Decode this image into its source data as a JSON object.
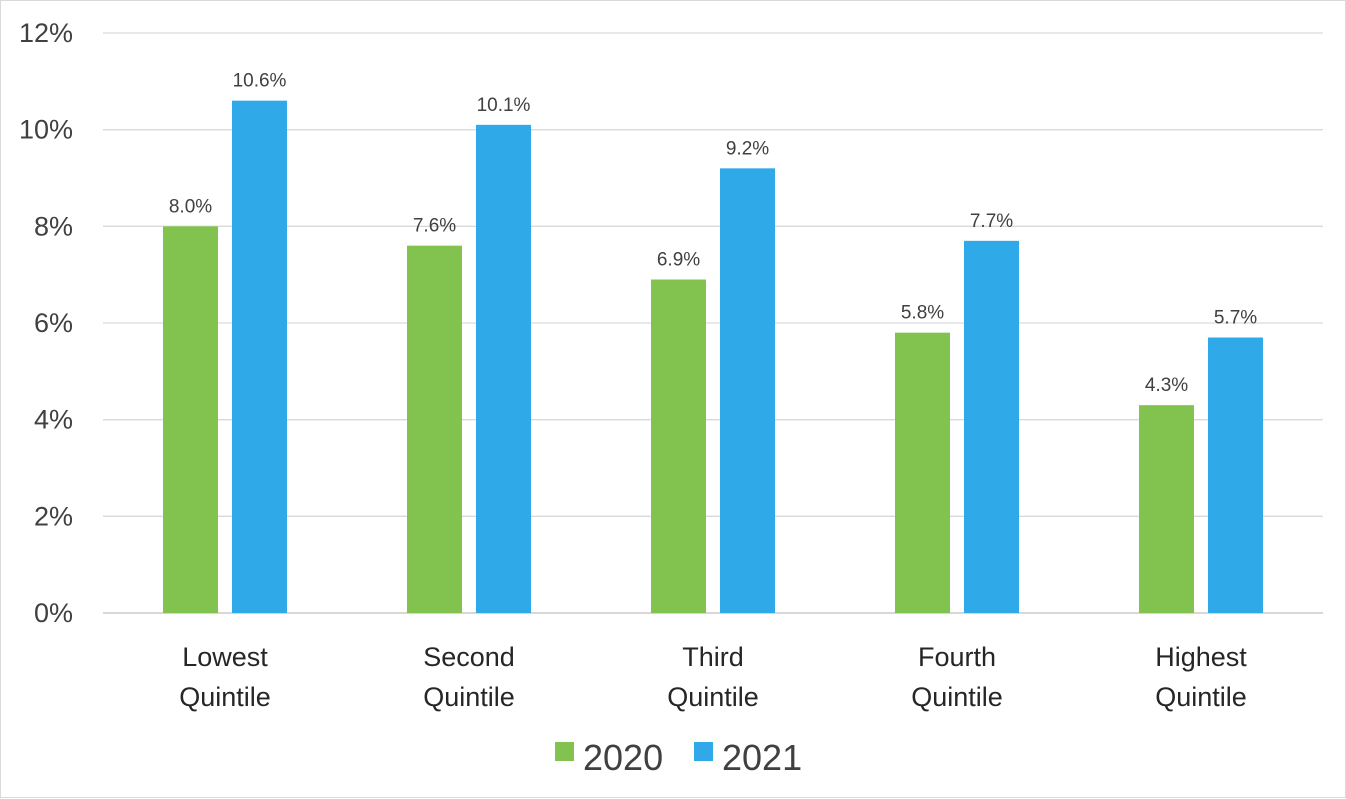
{
  "chart_data": {
    "type": "bar",
    "title": "",
    "xlabel": "",
    "ylabel": "",
    "categories": [
      [
        "Lowest",
        "Quintile"
      ],
      [
        "Second",
        "Quintile"
      ],
      [
        "Third",
        "Quintile"
      ],
      [
        "Fourth",
        "Quintile"
      ],
      [
        "Highest",
        "Quintile"
      ]
    ],
    "series": [
      {
        "name": "2020",
        "color": "#82c34f",
        "values": [
          8.0,
          7.6,
          6.9,
          5.8,
          4.3
        ],
        "labels": [
          "8.0%",
          "7.6%",
          "6.9%",
          "5.8%",
          "4.3%"
        ]
      },
      {
        "name": "2021",
        "color": "#30a9e9",
        "values": [
          10.6,
          10.1,
          9.2,
          7.7,
          5.7
        ],
        "labels": [
          "10.6%",
          "10.1%",
          "9.2%",
          "7.7%",
          "5.7%"
        ]
      }
    ],
    "ylim": [
      0,
      12
    ],
    "yticks": [
      0,
      2,
      4,
      6,
      8,
      10,
      12
    ],
    "ytick_labels": [
      "0%",
      "2%",
      "4%",
      "6%",
      "8%",
      "10%",
      "12%"
    ],
    "grid": true,
    "legend_position": "bottom-center"
  }
}
